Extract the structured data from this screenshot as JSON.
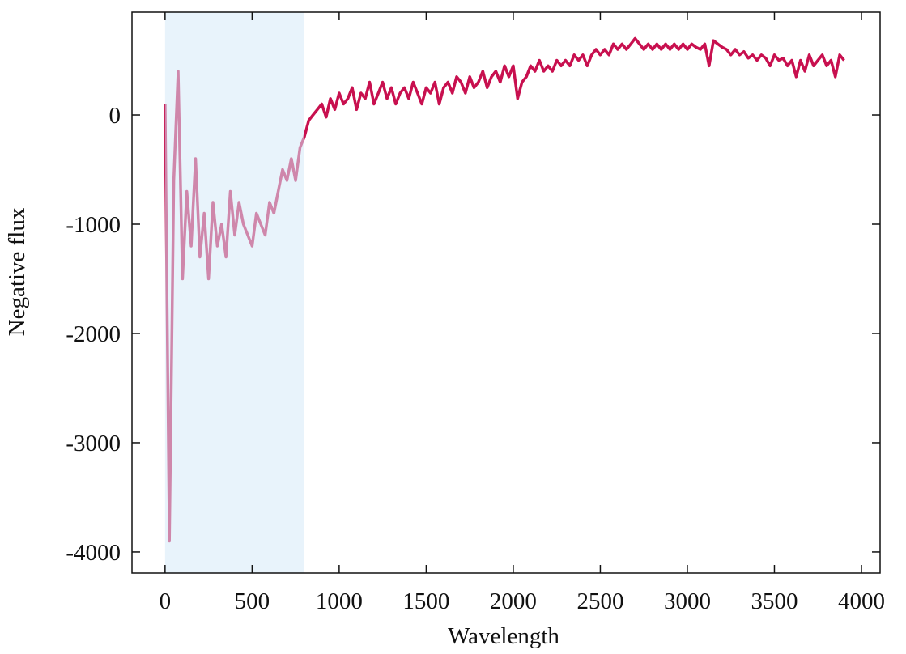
{
  "chart_data": {
    "type": "line",
    "x_label": "Wavelength",
    "y_label": "Negative flux",
    "x": [
      0,
      25,
      50,
      75,
      100,
      125,
      150,
      175,
      200,
      225,
      250,
      275,
      300,
      325,
      350,
      375,
      400,
      425,
      450,
      475,
      500,
      525,
      550,
      575,
      600,
      625,
      650,
      675,
      700,
      725,
      750,
      775,
      800,
      825,
      850,
      875,
      900,
      925,
      950,
      975,
      1000,
      1025,
      1050,
      1075,
      1100,
      1125,
      1150,
      1175,
      1200,
      1225,
      1250,
      1275,
      1300,
      1325,
      1350,
      1375,
      1400,
      1425,
      1450,
      1475,
      1500,
      1525,
      1550,
      1575,
      1600,
      1625,
      1650,
      1675,
      1700,
      1725,
      1750,
      1775,
      1800,
      1825,
      1850,
      1875,
      1900,
      1925,
      1950,
      1975,
      2000,
      2025,
      2050,
      2075,
      2100,
      2125,
      2150,
      2175,
      2200,
      2225,
      2250,
      2275,
      2300,
      2325,
      2350,
      2375,
      2400,
      2425,
      2450,
      2475,
      2500,
      2525,
      2550,
      2575,
      2600,
      2625,
      2650,
      2675,
      2700,
      2725,
      2750,
      2775,
      2800,
      2825,
      2850,
      2875,
      2900,
      2925,
      2950,
      2975,
      3000,
      3025,
      3050,
      3075,
      3100,
      3125,
      3150,
      3175,
      3200,
      3225,
      3250,
      3275,
      3300,
      3325,
      3350,
      3375,
      3400,
      3425,
      3450,
      3475,
      3500,
      3525,
      3550,
      3575,
      3600,
      3625,
      3650,
      3675,
      3700,
      3725,
      3750,
      3775,
      3800,
      3825,
      3850,
      3875,
      3900
    ],
    "values": [
      100,
      -3900,
      -600,
      400,
      -1500,
      -700,
      -1200,
      -400,
      -1300,
      -900,
      -1500,
      -800,
      -1200,
      -1000,
      -1300,
      -700,
      -1100,
      -800,
      -1000,
      -1100,
      -1200,
      -900,
      -1000,
      -1100,
      -800,
      -900,
      -700,
      -500,
      -600,
      -400,
      -600,
      -300,
      -200,
      -50,
      0,
      50,
      100,
      -20,
      150,
      50,
      200,
      100,
      150,
      250,
      50,
      200,
      150,
      300,
      100,
      200,
      300,
      150,
      250,
      100,
      200,
      250,
      150,
      300,
      200,
      100,
      250,
      200,
      300,
      100,
      250,
      300,
      200,
      350,
      300,
      200,
      350,
      250,
      300,
      400,
      250,
      350,
      400,
      300,
      450,
      350,
      450,
      150,
      300,
      350,
      450,
      400,
      500,
      400,
      450,
      400,
      500,
      450,
      500,
      450,
      550,
      500,
      550,
      450,
      550,
      600,
      550,
      600,
      550,
      650,
      600,
      650,
      600,
      650,
      700,
      650,
      600,
      650,
      600,
      650,
      600,
      650,
      600,
      650,
      600,
      650,
      600,
      650,
      620,
      600,
      650,
      450,
      680,
      650,
      620,
      600,
      550,
      600,
      550,
      580,
      520,
      550,
      500,
      550,
      520,
      450,
      550,
      500,
      520,
      450,
      500,
      350,
      500,
      400,
      550,
      450,
      500,
      550,
      450,
      500,
      350,
      550,
      500
    ],
    "color": "#c8104f",
    "span": [
      0,
      800
    ],
    "span_color": "#d6e9f7",
    "xlim": [
      -190,
      4107
    ],
    "ylim": [
      -4193,
      941
    ],
    "xticks": [
      0,
      500,
      1000,
      1500,
      2000,
      2500,
      3000,
      3500,
      4000
    ],
    "yticks": [
      0,
      -1000,
      -2000,
      -3000,
      -4000
    ]
  }
}
